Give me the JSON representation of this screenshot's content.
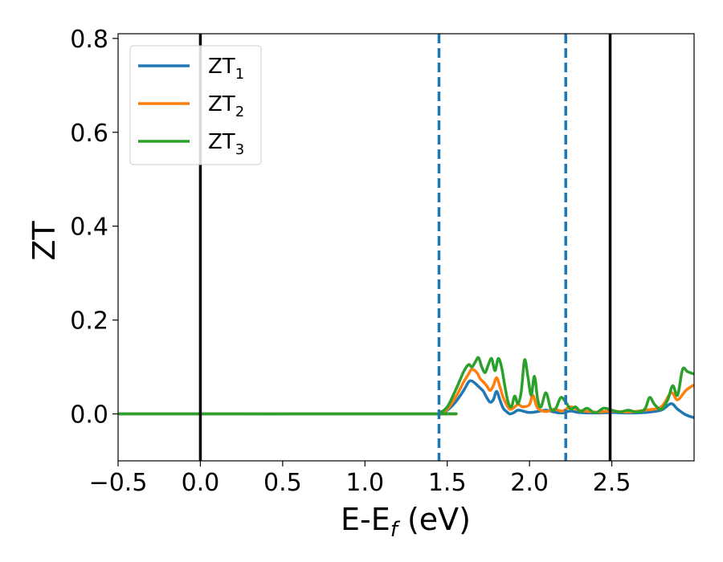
{
  "chart_data": {
    "type": "line",
    "xlabel": "E-E",
    "xlabel_subscript": "f",
    "xlabel_unit": " (eV)",
    "ylabel": "ZT",
    "xlim": [
      -0.5,
      3.0
    ],
    "ylim": [
      -0.1,
      0.81
    ],
    "xticks": [
      -0.5,
      0.0,
      0.5,
      1.0,
      1.5,
      2.0,
      2.5
    ],
    "xtick_labels": [
      "−0.5",
      "0.0",
      "0.5",
      "1.0",
      "1.5",
      "2.0",
      "2.5"
    ],
    "yticks": [
      0.0,
      0.2,
      0.4,
      0.6,
      0.8
    ],
    "ytick_labels": [
      "0.0",
      "0.2",
      "0.4",
      "0.6",
      "0.8"
    ],
    "grid": false,
    "legend_position": "top-left",
    "vlines_solid": [
      0.0,
      2.49
    ],
    "vlines_dashed": [
      1.45,
      2.22
    ],
    "vline_solid_color": "#000000",
    "vline_dashed_color": "#1f77b4",
    "series": [
      {
        "name": "ZT",
        "subscript": "1",
        "color": "#1f77b4",
        "x": [
          -0.5,
          1.4,
          1.45,
          1.5,
          1.55,
          1.6,
          1.63,
          1.65,
          1.68,
          1.7,
          1.72,
          1.74,
          1.76,
          1.78,
          1.8,
          1.82,
          1.84,
          1.86,
          1.88,
          1.9,
          1.93,
          1.96,
          2.0,
          2.05,
          2.1,
          2.15,
          2.2,
          2.25,
          2.3,
          2.4,
          2.5,
          2.6,
          2.7,
          2.8,
          2.86,
          2.9,
          2.95,
          3.0
        ],
        "y": [
          0.0,
          0.0,
          0.001,
          0.008,
          0.025,
          0.05,
          0.068,
          0.07,
          0.062,
          0.055,
          0.048,
          0.035,
          0.025,
          0.03,
          0.048,
          0.03,
          0.012,
          0.005,
          0.0,
          0.002,
          0.008,
          0.006,
          0.003,
          0.005,
          0.008,
          0.004,
          0.002,
          0.006,
          0.003,
          0.002,
          0.003,
          0.002,
          0.003,
          0.008,
          0.022,
          0.01,
          -0.002,
          -0.008
        ]
      },
      {
        "name": "ZT",
        "subscript": "2",
        "color": "#ff7f0e",
        "x": [
          -0.5,
          1.4,
          1.45,
          1.5,
          1.55,
          1.6,
          1.63,
          1.65,
          1.68,
          1.7,
          1.72,
          1.74,
          1.76,
          1.78,
          1.8,
          1.82,
          1.84,
          1.86,
          1.88,
          1.9,
          1.93,
          1.96,
          2.0,
          2.02,
          2.05,
          2.1,
          2.15,
          2.2,
          2.25,
          2.3,
          2.4,
          2.5,
          2.6,
          2.7,
          2.8,
          2.86,
          2.9,
          2.95,
          3.0
        ],
        "y": [
          0.0,
          0.0,
          0.001,
          0.01,
          0.035,
          0.068,
          0.085,
          0.095,
          0.088,
          0.075,
          0.068,
          0.06,
          0.05,
          0.06,
          0.077,
          0.058,
          0.035,
          0.02,
          0.01,
          0.012,
          0.02,
          0.015,
          0.02,
          0.04,
          0.012,
          0.005,
          0.01,
          0.006,
          0.015,
          0.008,
          0.004,
          0.006,
          0.004,
          0.008,
          0.015,
          0.045,
          0.03,
          0.05,
          0.062
        ]
      },
      {
        "name": "ZT",
        "subscript": "3",
        "color": "#2ca02c",
        "x": [
          -0.5,
          1.4,
          1.45,
          1.5,
          1.55,
          1.6,
          1.63,
          1.65,
          1.67,
          1.69,
          1.71,
          1.73,
          1.75,
          1.77,
          1.79,
          1.81,
          1.83,
          1.85,
          1.87,
          1.89,
          1.91,
          1.93,
          1.95,
          1.97,
          1.99,
          2.01,
          2.03,
          2.05,
          2.07,
          2.1,
          2.13,
          2.16,
          2.19,
          2.22,
          2.25,
          2.28,
          2.31,
          2.35,
          2.4,
          2.45,
          2.5,
          2.55,
          2.6,
          2.65,
          2.7,
          2.73,
          2.76,
          2.8,
          2.84,
          2.87,
          2.9,
          2.93,
          2.96,
          3.0
        ],
        "y": [
          0.0,
          0.0,
          0.002,
          0.015,
          0.05,
          0.09,
          0.105,
          0.1,
          0.11,
          0.12,
          0.1,
          0.088,
          0.105,
          0.118,
          0.092,
          0.118,
          0.1,
          0.06,
          0.025,
          0.015,
          0.038,
          0.022,
          0.048,
          0.115,
          0.08,
          0.04,
          0.08,
          0.03,
          0.015,
          0.045,
          0.01,
          0.012,
          0.035,
          0.025,
          0.01,
          0.015,
          0.005,
          0.012,
          0.002,
          0.012,
          0.008,
          0.004,
          0.008,
          0.004,
          0.01,
          0.035,
          0.02,
          0.01,
          0.03,
          0.06,
          0.04,
          0.095,
          0.09,
          0.085
        ]
      }
    ]
  }
}
